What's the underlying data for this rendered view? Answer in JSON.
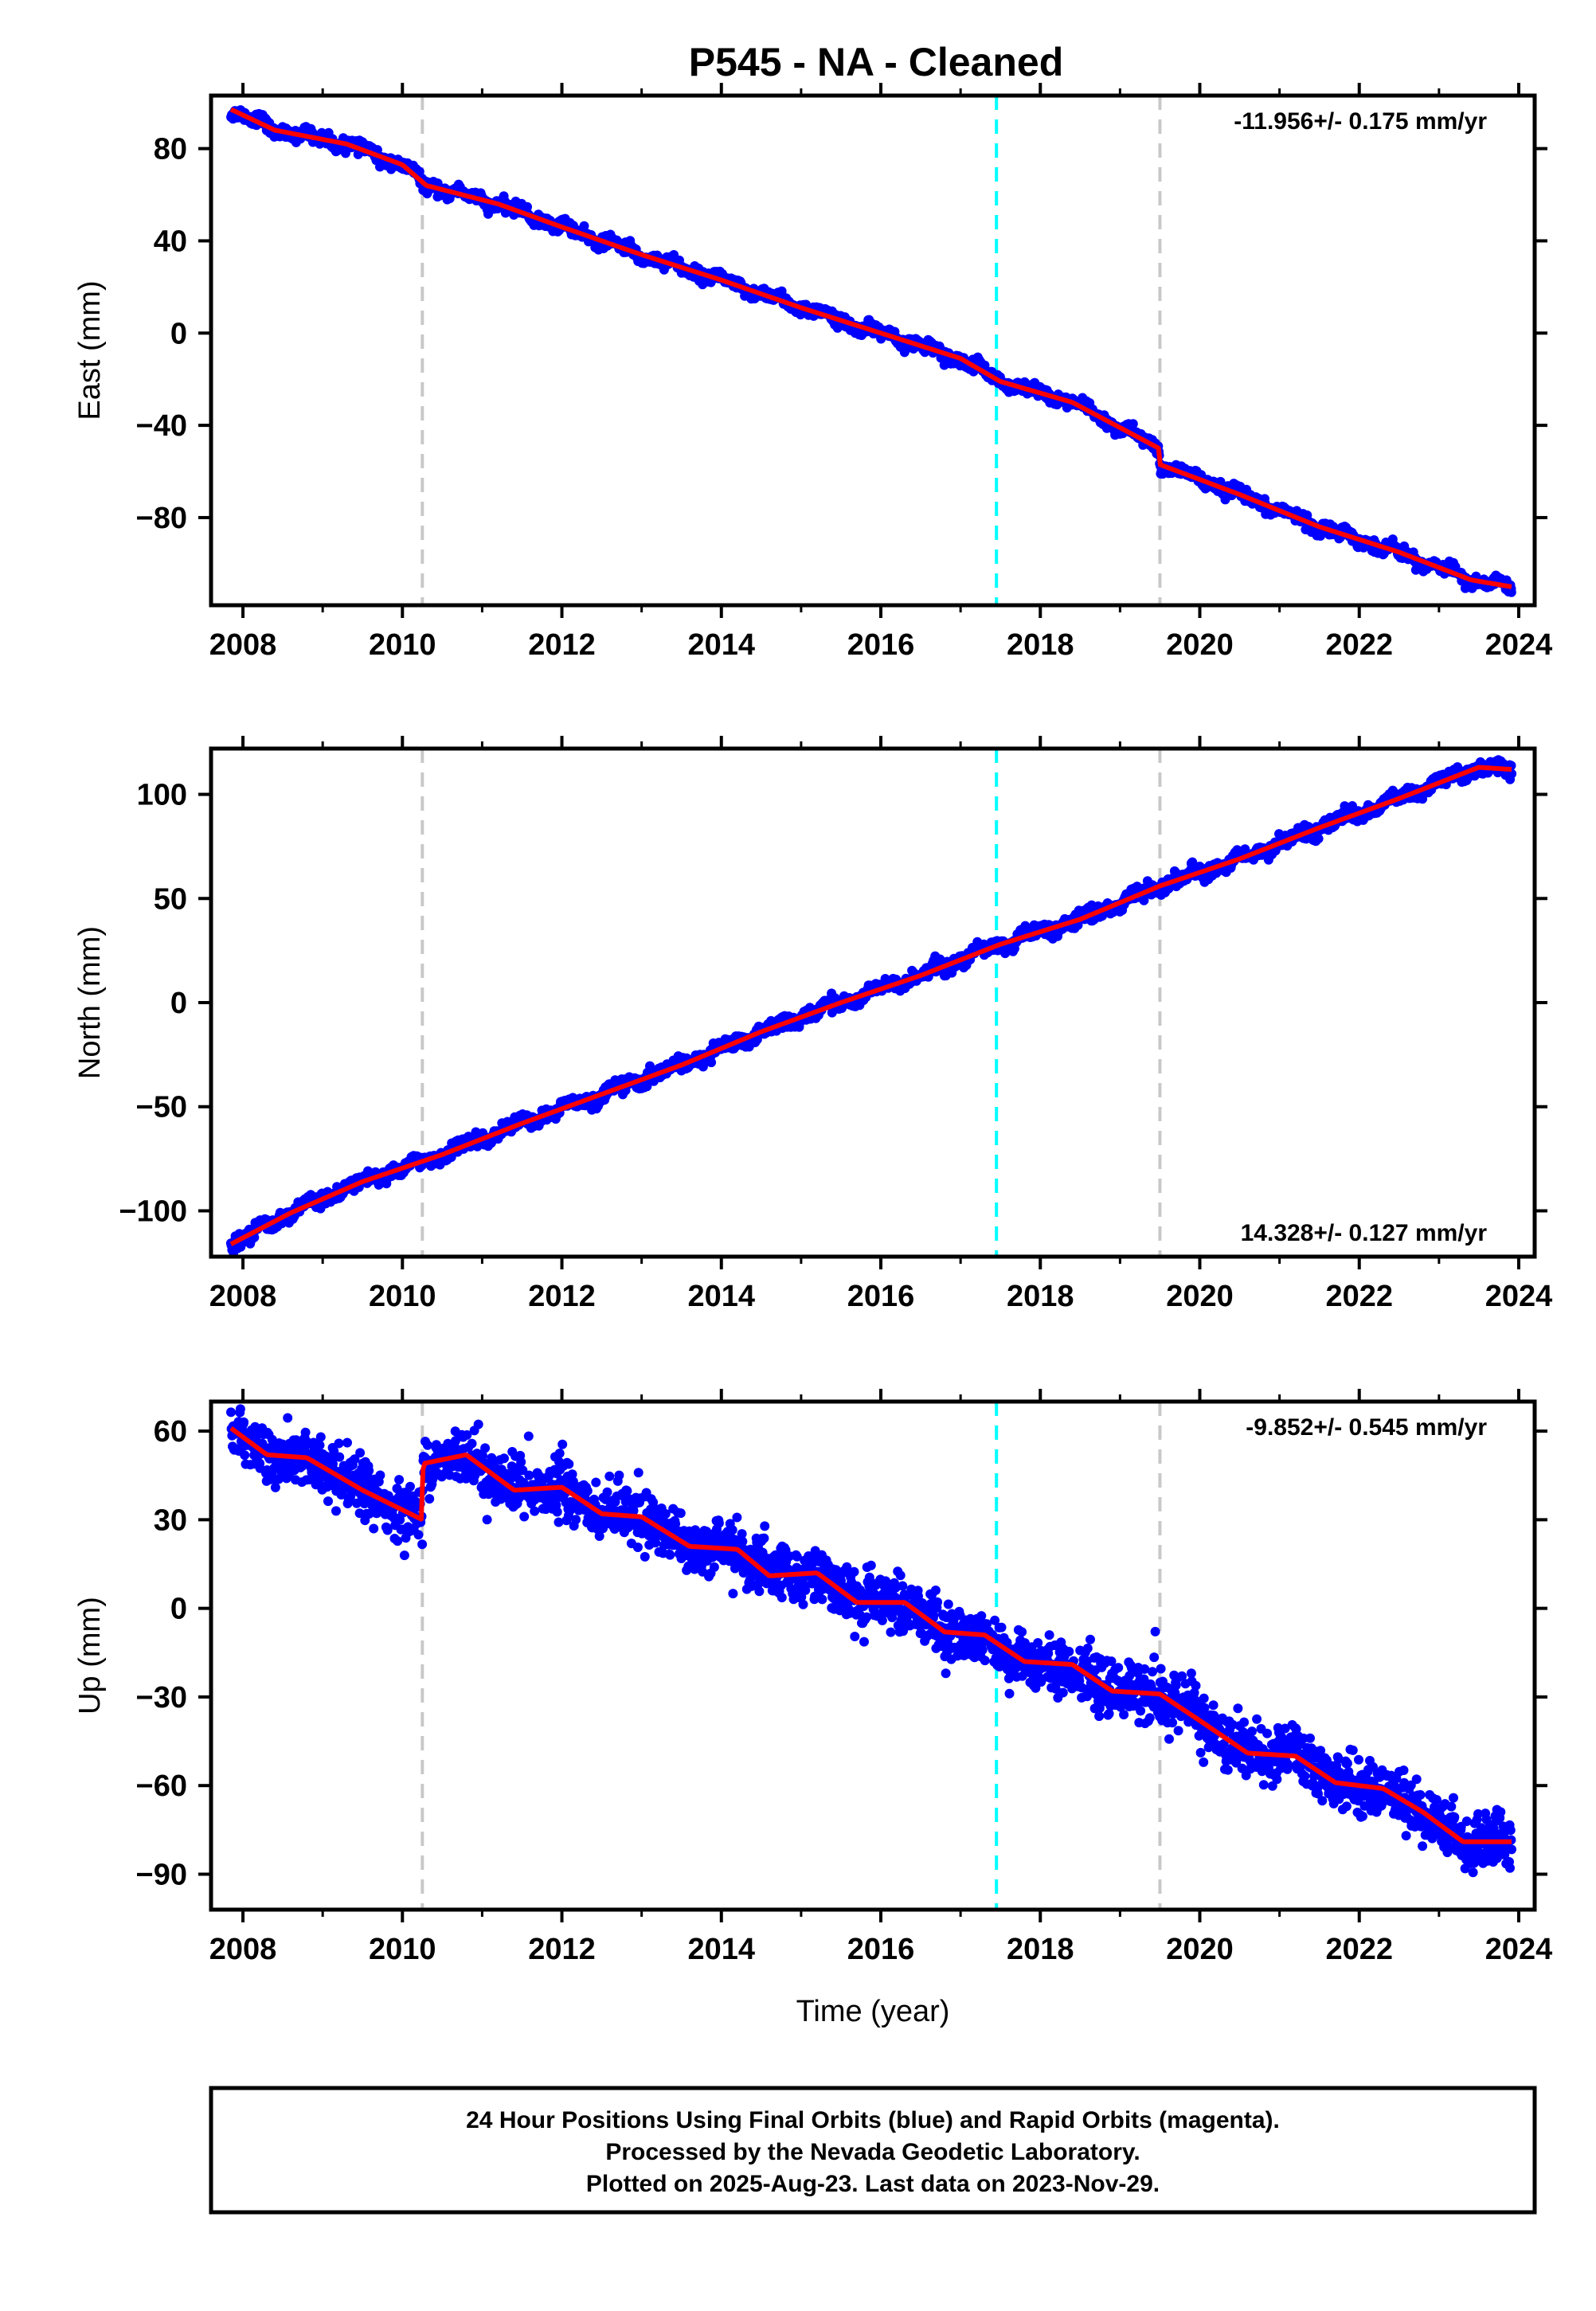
{
  "title": "P545  - NA - Cleaned",
  "colors": {
    "final_points": "#0000ff",
    "model_curve": "#ff0000",
    "event_gray": "#c8c8c8",
    "event_cyan": "#00ffff",
    "axes": "#000000"
  },
  "chart_data": [
    {
      "type": "scatter",
      "ylabel": "East (mm)",
      "xlabel": "",
      "rate_text": "-11.956+/- 0.175 mm/yr",
      "xlim": [
        2007.6,
        2024.2
      ],
      "ylim": [
        -118,
        103
      ],
      "yticks": [
        80,
        40,
        0,
        -40,
        -80
      ],
      "ytick_labels": [
        "80",
        "40",
        "0",
        "−40",
        "−80"
      ],
      "xticks": [
        2008,
        2010,
        2012,
        2014,
        2016,
        2018,
        2020,
        2022,
        2024
      ],
      "xtick_labels": [
        "2008",
        "2010",
        "2012",
        "2014",
        "2016",
        "2018",
        "2020",
        "2022",
        "2024"
      ],
      "event_lines": [
        {
          "x": 2010.25,
          "color": "gray"
        },
        {
          "x": 2017.45,
          "color": "cyan"
        },
        {
          "x": 2019.5,
          "color": "gray"
        }
      ],
      "series": [
        {
          "kind": "points",
          "x_range": [
            2007.85,
            2023.91
          ],
          "trend": {
            "x0": 2007.85,
            "y0": 98,
            "x1": 2023.91,
            "y1": -113
          },
          "seasonal_amplitude": 3,
          "scatter_sd": 1.2,
          "offsets": [
            {
              "x": 2019.5,
              "dy": -5
            }
          ]
        },
        {
          "kind": "line",
          "anchors": [
            [
              2007.85,
              97
            ],
            [
              2008.4,
              88
            ],
            [
              2009.3,
              82
            ],
            [
              2010.0,
              73
            ],
            [
              2010.3,
              64
            ],
            [
              2011.2,
              56
            ],
            [
              2012.0,
              46
            ],
            [
              2013.0,
              34
            ],
            [
              2014.0,
              23
            ],
            [
              2015.0,
              11
            ],
            [
              2016.0,
              0
            ],
            [
              2017.0,
              -11
            ],
            [
              2017.5,
              -21
            ],
            [
              2018.4,
              -30
            ],
            [
              2019.49,
              -50
            ],
            [
              2019.5,
              -57
            ],
            [
              2020.5,
              -70
            ],
            [
              2021.5,
              -84
            ],
            [
              2022.5,
              -95
            ],
            [
              2023.4,
              -107
            ],
            [
              2023.91,
              -110
            ]
          ],
          "wiggle": 2.2
        }
      ]
    },
    {
      "type": "scatter",
      "ylabel": "North (mm)",
      "xlabel": "",
      "rate_text": "14.328+/- 0.127 mm/yr",
      "xlim": [
        2007.6,
        2024.2
      ],
      "ylim": [
        -122,
        122
      ],
      "yticks": [
        100,
        50,
        0,
        -50,
        -100
      ],
      "ytick_labels": [
        "100",
        "50",
        "0",
        "−50",
        "−100"
      ],
      "xticks": [
        2008,
        2010,
        2012,
        2014,
        2016,
        2018,
        2020,
        2022,
        2024
      ],
      "xtick_labels": [
        "2008",
        "2010",
        "2012",
        "2014",
        "2016",
        "2018",
        "2020",
        "2022",
        "2024"
      ],
      "event_lines": [
        {
          "x": 2010.25,
          "color": "gray"
        },
        {
          "x": 2017.45,
          "color": "cyan"
        },
        {
          "x": 2019.5,
          "color": "gray"
        }
      ],
      "series": [
        {
          "kind": "points",
          "x_range": [
            2007.85,
            2023.91
          ],
          "trend": {
            "x0": 2007.85,
            "y0": -115,
            "x1": 2023.91,
            "y1": 112
          },
          "seasonal_amplitude": 3,
          "scatter_sd": 1.5,
          "offsets": []
        },
        {
          "kind": "line",
          "anchors": [
            [
              2007.85,
              -116
            ],
            [
              2008.6,
              -101
            ],
            [
              2009.5,
              -86
            ],
            [
              2010.5,
              -73
            ],
            [
              2011.5,
              -58
            ],
            [
              2012.5,
              -44
            ],
            [
              2013.5,
              -30
            ],
            [
              2014.5,
              -14
            ],
            [
              2015.5,
              0
            ],
            [
              2016.5,
              13
            ],
            [
              2017.5,
              28
            ],
            [
              2018.5,
              40
            ],
            [
              2019.5,
              56
            ],
            [
              2020.5,
              69
            ],
            [
              2021.5,
              84
            ],
            [
              2022.5,
              98
            ],
            [
              2023.5,
              113
            ],
            [
              2023.91,
              112
            ]
          ],
          "wiggle": 2.5
        }
      ]
    },
    {
      "type": "scatter",
      "ylabel": "Up (mm)",
      "xlabel": "Time (year)",
      "rate_text": "-9.852+/- 0.545 mm/yr",
      "xlim": [
        2007.6,
        2024.2
      ],
      "ylim": [
        -102,
        70
      ],
      "yticks": [
        60,
        30,
        0,
        -30,
        -60,
        -90
      ],
      "ytick_labels": [
        "60",
        "30",
        "0",
        "−30",
        "−60",
        "−90"
      ],
      "xticks": [
        2008,
        2010,
        2012,
        2014,
        2016,
        2018,
        2020,
        2022,
        2024
      ],
      "xtick_labels": [
        "2008",
        "2010",
        "2012",
        "2014",
        "2016",
        "2018",
        "2020",
        "2022",
        "2024"
      ],
      "event_lines": [
        {
          "x": 2010.25,
          "color": "gray"
        },
        {
          "x": 2017.45,
          "color": "cyan"
        },
        {
          "x": 2019.5,
          "color": "gray"
        }
      ],
      "series": [
        {
          "kind": "points",
          "x_range": [
            2007.85,
            2023.91
          ],
          "trend": {
            "x0": 2007.85,
            "y0": 60,
            "x1": 2023.91,
            "y1": -88
          },
          "seasonal_amplitude": 6,
          "scatter_sd": 4.5,
          "offsets": []
        },
        {
          "kind": "line",
          "anchors": [
            [
              2007.85,
              61
            ],
            [
              2008.3,
              52
            ],
            [
              2008.8,
              51
            ],
            [
              2009.5,
              40
            ],
            [
              2010.25,
              30
            ],
            [
              2010.26,
              49
            ],
            [
              2010.8,
              52
            ],
            [
              2011.4,
              40
            ],
            [
              2012.0,
              41
            ],
            [
              2012.5,
              32
            ],
            [
              2013.0,
              31
            ],
            [
              2013.6,
              21
            ],
            [
              2014.2,
              20
            ],
            [
              2014.6,
              11
            ],
            [
              2015.2,
              12
            ],
            [
              2015.7,
              2
            ],
            [
              2016.3,
              2
            ],
            [
              2016.8,
              -8
            ],
            [
              2017.3,
              -9
            ],
            [
              2017.8,
              -18
            ],
            [
              2018.4,
              -19
            ],
            [
              2018.9,
              -28
            ],
            [
              2019.5,
              -29
            ],
            [
              2020.0,
              -38
            ],
            [
              2020.6,
              -49
            ],
            [
              2021.2,
              -50
            ],
            [
              2021.7,
              -59
            ],
            [
              2022.3,
              -61
            ],
            [
              2022.8,
              -69
            ],
            [
              2023.3,
              -79
            ],
            [
              2023.91,
              -79
            ]
          ],
          "wiggle": 1.8
        }
      ]
    }
  ],
  "footer": {
    "line1": "24 Hour Positions Using Final Orbits (blue) and Rapid Orbits (magenta).",
    "line2": "Processed by the Nevada Geodetic Laboratory.",
    "line3": "Plotted on 2025-Aug-23. Last data on 2023-Nov-29."
  }
}
